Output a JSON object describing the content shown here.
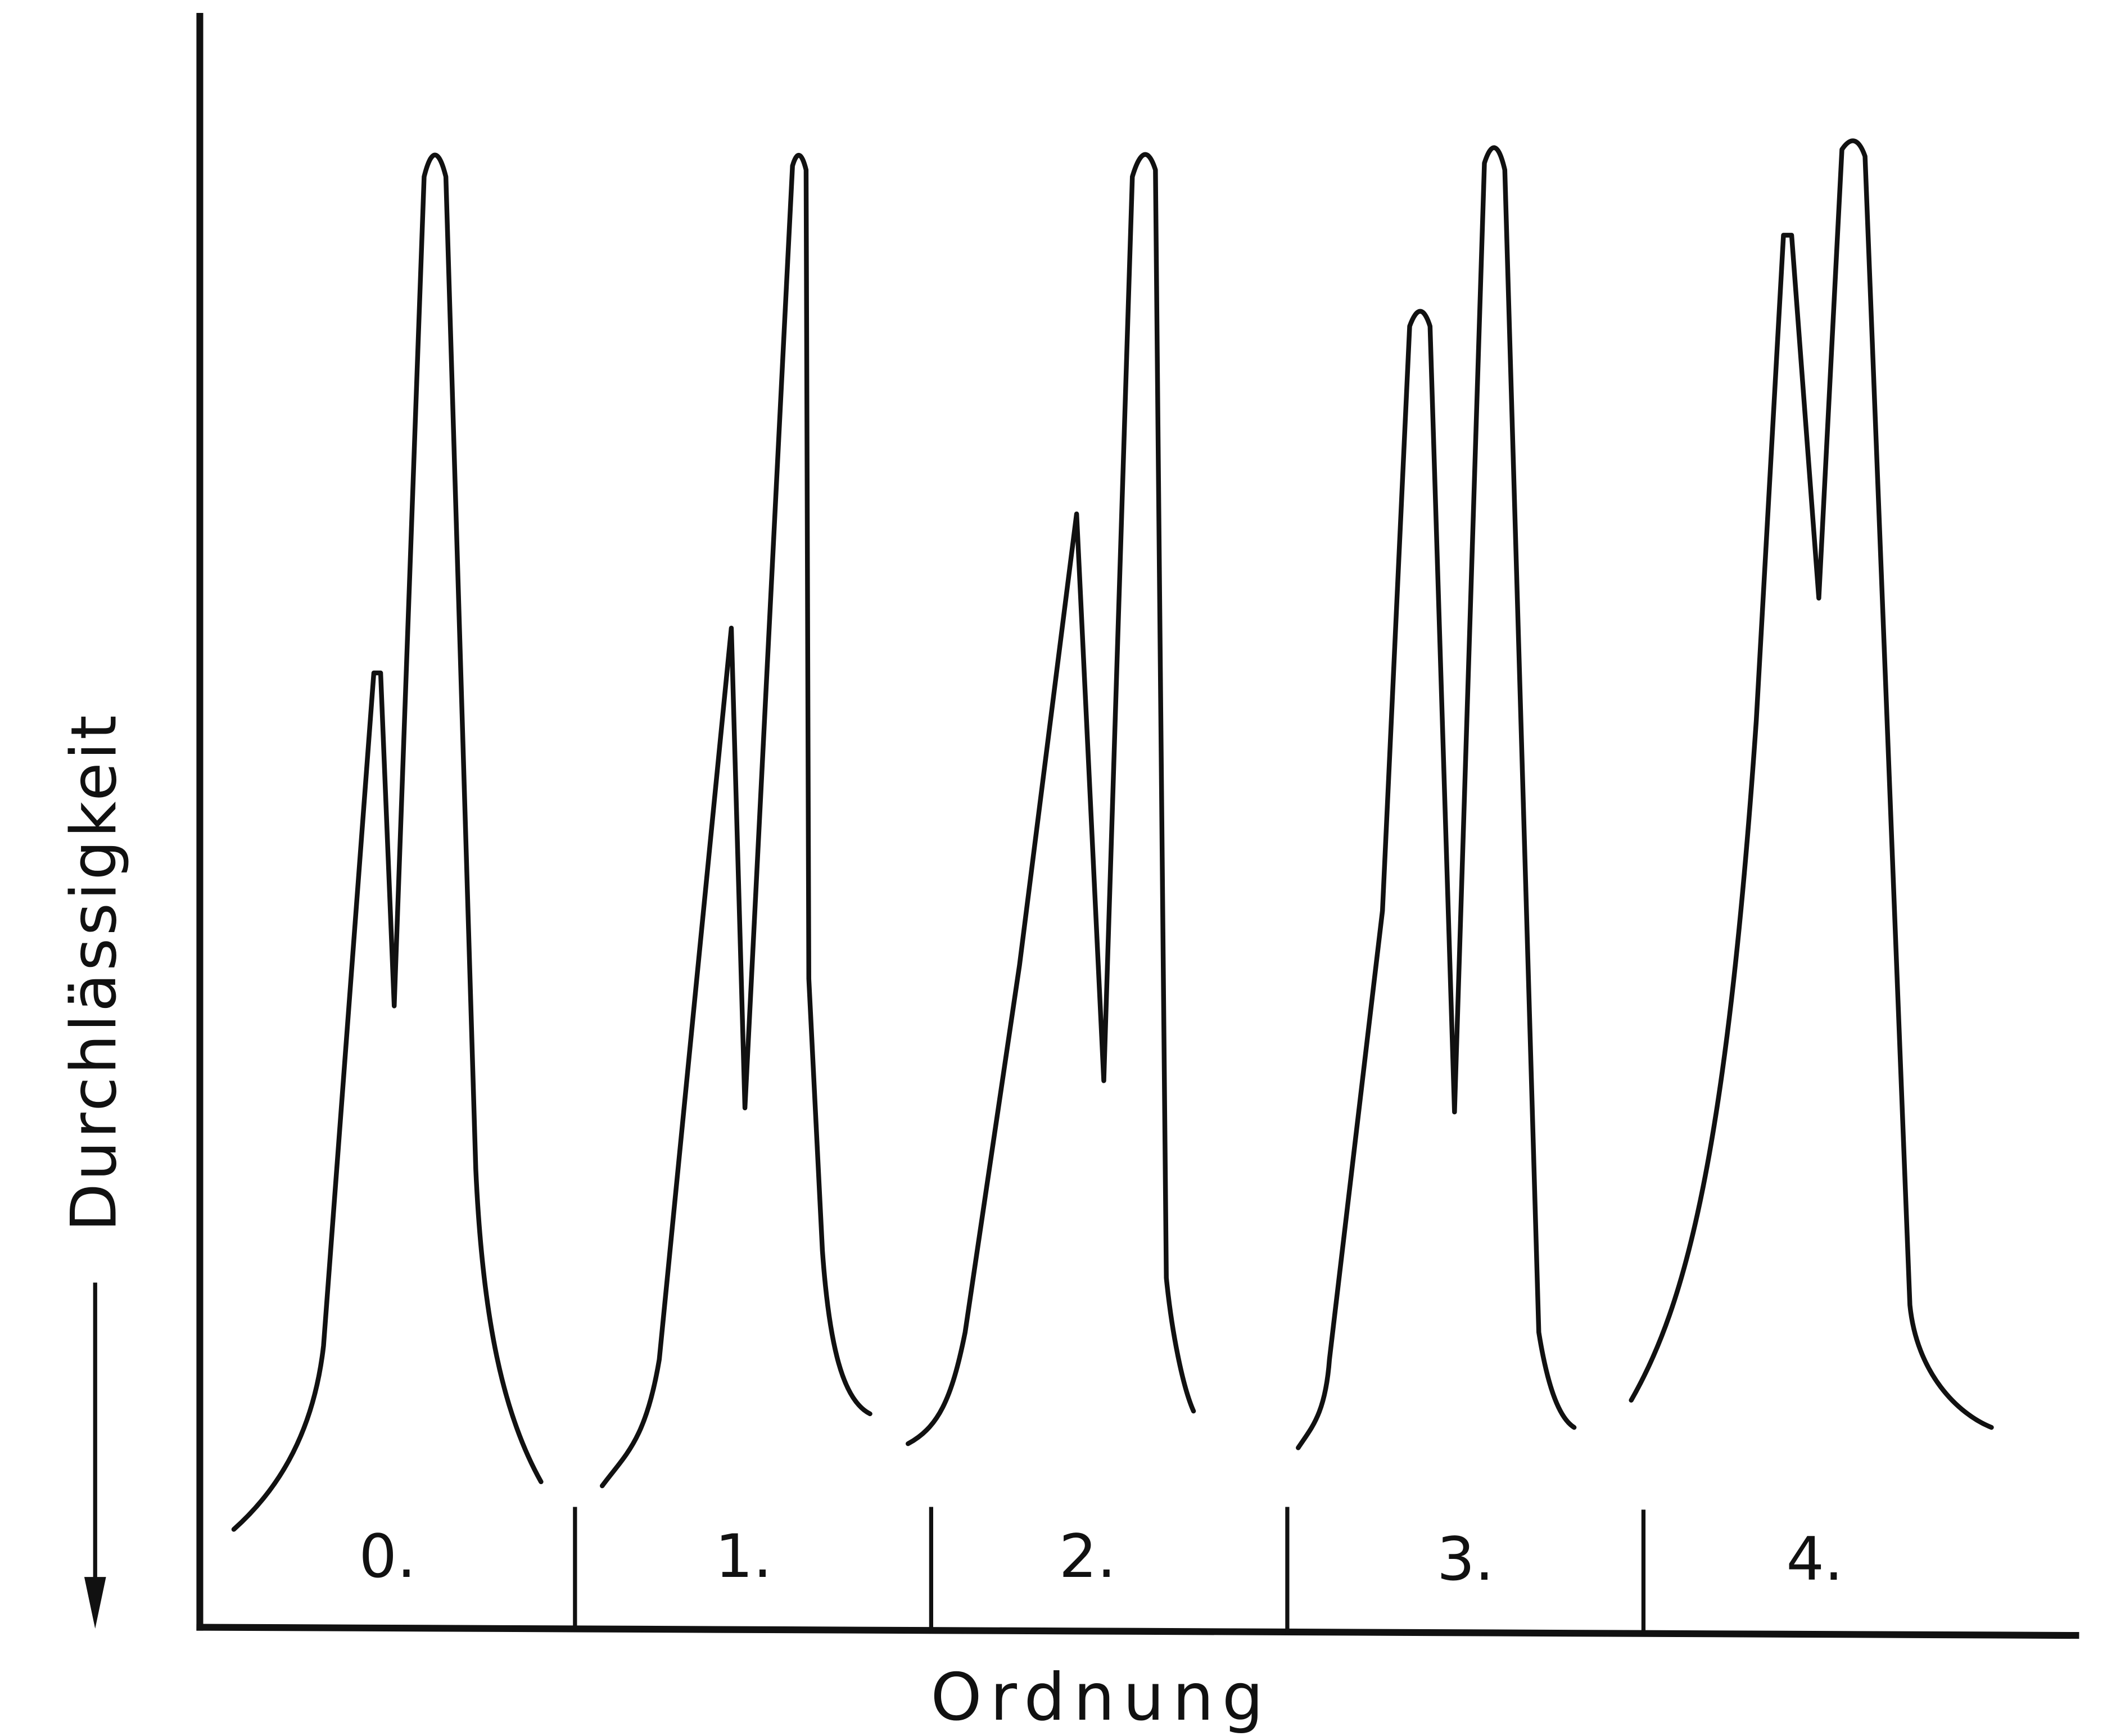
{
  "y_axis_label": "Durchlässigkeit",
  "x_axis_label": "Ordnung",
  "orders": [
    "0.",
    "1.",
    "2.",
    "3.",
    "4."
  ]
}
